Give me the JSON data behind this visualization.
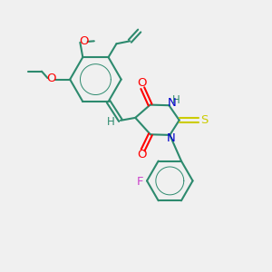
{
  "bg_color": "#f0f0f0",
  "bond_color": "#2d8a6e",
  "oxygen_color": "#ff0000",
  "nitrogen_color": "#0000cc",
  "sulfur_color": "#cccc00",
  "fluorine_color": "#cc44cc",
  "carbon_color": "#2d8a6e",
  "line_width": 1.5,
  "font_size": 8.5,
  "xlim": [
    0,
    10
  ],
  "ylim": [
    0,
    10
  ]
}
